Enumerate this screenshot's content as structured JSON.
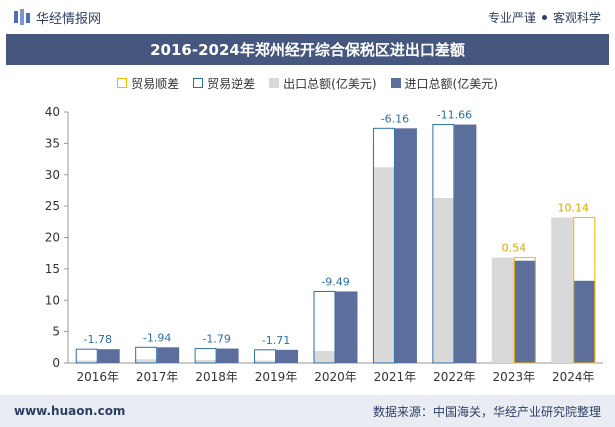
{
  "header": {
    "brand": "华经情报网",
    "tagline_left": "专业严谨",
    "tagline_right": "客观科学"
  },
  "title": "2016-2024年郑州经开综合保税区进出口差额",
  "footer": {
    "url": "www.huaon.com",
    "source": "数据来源：中国海关，华经产业研究院整理"
  },
  "colors": {
    "export": "#d9d9d9",
    "import": "#5b6e9c",
    "surplus": "#f5b800",
    "deficit": "#2e6fa8",
    "title_bg": "#45577e"
  },
  "chart_data": {
    "type": "bar",
    "categories": [
      "2016年",
      "2017年",
      "2018年",
      "2019年",
      "2020年",
      "2021年",
      "2022年",
      "2023年",
      "2024年"
    ],
    "series": [
      {
        "name": "出口总额(亿美元)",
        "values": [
          0.4,
          0.6,
          0.5,
          0.4,
          1.9,
          31.2,
          26.3,
          16.8,
          23.2
        ]
      },
      {
        "name": "进口总额(亿美元)",
        "values": [
          2.2,
          2.5,
          2.3,
          2.1,
          11.4,
          37.4,
          38.0,
          16.3,
          13.1
        ]
      }
    ],
    "balance": [
      -1.78,
      -1.94,
      -1.79,
      -1.71,
      -9.49,
      -6.16,
      -11.66,
      0.54,
      10.14
    ],
    "balance_labels": [
      "-1.78",
      "-1.94",
      "-1.79",
      "-1.71",
      "-9.49",
      "-6.16",
      "-11.66",
      "0.54",
      "10.14"
    ],
    "legend": [
      "贸易顺差",
      "贸易逆差",
      "出口总额(亿美元)",
      "进口总额(亿美元)"
    ],
    "ylim": [
      0,
      40
    ],
    "yticks": [
      "0",
      "5",
      "10",
      "15",
      "20",
      "25",
      "30",
      "35",
      "40"
    ],
    "grid": false,
    "legend_position": "top"
  }
}
